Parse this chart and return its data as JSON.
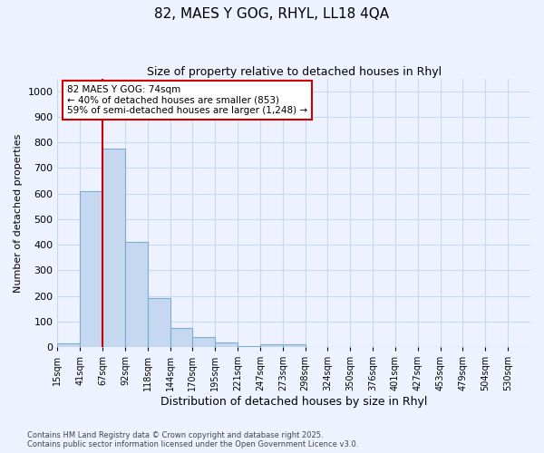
{
  "title": "82, MAES Y GOG, RHYL, LL18 4QA",
  "subtitle": "Size of property relative to detached houses in Rhyl",
  "xlabel": "Distribution of detached houses by size in Rhyl",
  "ylabel": "Number of detached properties",
  "bin_labels": [
    "15sqm",
    "41sqm",
    "67sqm",
    "92sqm",
    "118sqm",
    "144sqm",
    "170sqm",
    "195sqm",
    "221sqm",
    "247sqm",
    "273sqm",
    "298sqm",
    "324sqm",
    "350sqm",
    "376sqm",
    "401sqm",
    "427sqm",
    "453sqm",
    "479sqm",
    "504sqm",
    "530sqm"
  ],
  "bar_heights": [
    15,
    608,
    775,
    410,
    192,
    76,
    38,
    18,
    5,
    12,
    10,
    0,
    0,
    0,
    0,
    0,
    0,
    0,
    0,
    0,
    0
  ],
  "bar_color": "#c5d8f0",
  "bar_edge_color": "#7aadd4",
  "vline_x": 2,
  "vline_color": "#cc0000",
  "ylim": [
    0,
    1050
  ],
  "yticks": [
    0,
    100,
    200,
    300,
    400,
    500,
    600,
    700,
    800,
    900,
    1000
  ],
  "annotation_text": "82 MAES Y GOG: 74sqm\n← 40% of detached houses are smaller (853)\n59% of semi-detached houses are larger (1,248) →",
  "annotation_box_color": "#ffffff",
  "annotation_box_edge_color": "#cc0000",
  "footnote": "Contains HM Land Registry data © Crown copyright and database right 2025.\nContains public sector information licensed under the Open Government Licence v3.0.",
  "background_color": "#eef2ff",
  "grid_color": "#c8d8f0",
  "title_fontsize": 11,
  "subtitle_fontsize": 9
}
